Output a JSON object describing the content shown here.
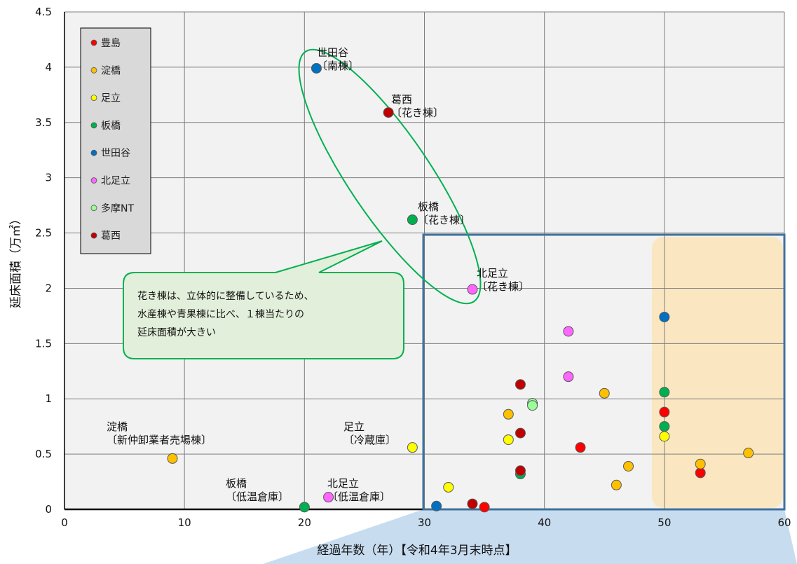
{
  "chart_data": {
    "type": "scatter",
    "xlabel": "経過年数（年）【令和4年3月末時点】",
    "ylabel": "延床面積（万㎡）",
    "xlim": [
      0,
      60
    ],
    "ylim": [
      0,
      4.5
    ],
    "xticks": [
      "0",
      "10",
      "20",
      "30",
      "40",
      "50",
      "60"
    ],
    "yticks": [
      "0",
      "0.5",
      "1",
      "1.5",
      "2",
      "2.5",
      "3",
      "3.5",
      "4",
      "4.5"
    ],
    "grid": true,
    "legend_position": "top-left",
    "colors": {
      "豊島": "#ff0000",
      "淀橋": "#ffc000",
      "足立": "#ffff00",
      "板橋": "#00b050",
      "世田谷": "#0070c0",
      "北足立": "#ff66ff",
      "多摩NT": "#99ff99",
      "葛西": "#c00000",
      "highlight": "#fbe5b8",
      "frame": "#41719c",
      "ellipse": "#00b050"
    },
    "series": [
      {
        "name": "豊島",
        "points": [
          [
            35,
            0.02
          ],
          [
            43,
            0.56
          ],
          [
            50,
            0.88
          ],
          [
            53,
            0.33
          ]
        ]
      },
      {
        "name": "淀橋",
        "points": [
          [
            9,
            0.46
          ],
          [
            37,
            0.86
          ],
          [
            45,
            1.05
          ],
          [
            46,
            0.22
          ],
          [
            47,
            0.39
          ],
          [
            53,
            0.41
          ],
          [
            57,
            0.51
          ]
        ]
      },
      {
        "name": "足立",
        "points": [
          [
            29,
            0.56
          ],
          [
            32,
            0.2
          ],
          [
            37,
            0.63
          ],
          [
            50,
            0.66
          ]
        ]
      },
      {
        "name": "板橋",
        "points": [
          [
            20,
            0.02
          ],
          [
            29,
            2.62
          ],
          [
            38,
            0.32
          ],
          [
            50,
            1.06
          ],
          [
            50,
            0.75
          ]
        ]
      },
      {
        "name": "世田谷",
        "points": [
          [
            21,
            3.99
          ],
          [
            31,
            0.03
          ],
          [
            50,
            1.74
          ]
        ]
      },
      {
        "name": "北足立",
        "points": [
          [
            22,
            0.11
          ],
          [
            34,
            1.99
          ],
          [
            42,
            1.61
          ],
          [
            42,
            1.2
          ]
        ]
      },
      {
        "name": "多摩NT",
        "points": [
          [
            39,
            0.96
          ],
          [
            39,
            0.94
          ]
        ]
      },
      {
        "name": "葛西",
        "points": [
          [
            27,
            3.59
          ],
          [
            34,
            0.05
          ],
          [
            38,
            1.13
          ],
          [
            38,
            0.69
          ],
          [
            38,
            0.35
          ]
        ]
      }
    ],
    "annotations": [
      {
        "lines": [
          "世田谷",
          "〔南棟〕"
        ]
      },
      {
        "lines": [
          "葛西",
          "〔花き棟〕"
        ]
      },
      {
        "lines": [
          "板橋",
          "〔花き棟〕"
        ]
      },
      {
        "lines": [
          "北足立",
          "〔花き棟〕"
        ]
      },
      {
        "lines": [
          "淀橋",
          "〔新仲卸業者売場棟〕"
        ]
      },
      {
        "lines": [
          "足立",
          "〔冷蔵庫〕"
        ]
      },
      {
        "lines": [
          "板橋",
          "〔低温倉庫〕"
        ]
      },
      {
        "lines": [
          "北足立",
          "〔低温倉庫〕"
        ]
      }
    ],
    "callout": [
      "花き棟は、立体的に整備しているため、",
      "水産棟や青果棟に比べ、１棟当たりの",
      "延床面積が大きい"
    ]
  }
}
